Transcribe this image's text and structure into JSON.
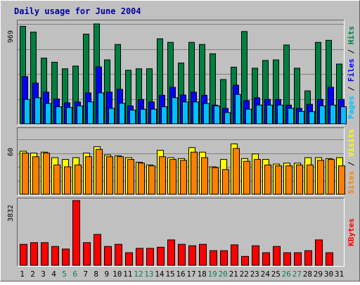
{
  "chart_data": {
    "type": "bar",
    "title": "Daily usage for June 2004",
    "x": [
      "1",
      "2",
      "3",
      "4",
      "5",
      "6",
      "7",
      "8",
      "9",
      "10",
      "11",
      "12",
      "13",
      "14",
      "15",
      "16",
      "17",
      "18",
      "19",
      "20",
      "21",
      "22",
      "23",
      "24",
      "25",
      "26",
      "27",
      "28",
      "29",
      "30",
      "31"
    ],
    "weekend_days": [
      "5",
      "6",
      "12",
      "13",
      "19",
      "20",
      "26",
      "27"
    ],
    "panels": [
      {
        "name": "hits-files-pages",
        "ylim": [
          0,
          969
        ],
        "max_label": "969",
        "grid": true,
        "series": [
          {
            "name": "Hits",
            "color": "#008040",
            "values": [
              946,
              890,
              638,
              598,
              534,
              560,
              870,
              969,
              620,
              770,
              520,
              534,
              534,
              825,
              790,
              590,
              790,
              770,
              680,
              430,
              550,
              895,
              540,
              615,
              620,
              765,
              540,
              320,
              790,
              810,
              580
            ]
          },
          {
            "name": "Files",
            "color": "#0000ff",
            "values": [
              458,
              395,
              308,
              240,
              205,
              213,
              300,
              553,
              308,
              335,
              174,
              237,
              213,
              277,
              355,
              280,
              308,
              277,
              182,
              150,
              375,
              225,
              253,
              237,
              237,
              182,
              150,
              190,
              237,
              355,
              237
            ]
          },
          {
            "name": "Pages",
            "color": "#00c0ff",
            "values": [
              237,
              253,
              197,
              166,
              158,
              174,
              213,
              300,
              150,
              200,
              134,
              142,
              142,
              166,
              253,
              213,
              213,
              197,
              174,
              110,
              285,
              142,
              182,
              182,
              182,
              150,
              120,
              118,
              174,
              182,
              166
            ]
          }
        ],
        "axis_label": "Pages / Files / Hits"
      },
      {
        "name": "visits-sites",
        "ylim": [
          0,
          60
        ],
        "max_label": "60",
        "grid": true,
        "series": [
          {
            "name": "Visits",
            "color": "#ffff00",
            "values": [
              47,
              45,
              46,
              40,
              38,
              40,
              45,
              52,
              43,
              42,
              40,
              35,
              32,
              48,
              40,
              39,
              51,
              46,
              30,
              38,
              55,
              39,
              44,
              38,
              33,
              34,
              34,
              40,
              40,
              39,
              40
            ]
          },
          {
            "name": "Sites",
            "color": "#ff8000",
            "values": [
              45,
              41,
              45,
              32,
              30,
              32,
              41,
              49,
              41,
              41,
              38,
              34,
              31,
              41,
              38,
              37,
              46,
              40,
              29,
              27,
              50,
              36,
              38,
              32,
              31,
              31,
              32,
              32,
              37,
              38,
              31
            ]
          }
        ],
        "axis_label": "Sites / Visits"
      },
      {
        "name": "kbytes",
        "ylim": [
          0,
          3832
        ],
        "max_label": "3832",
        "grid": false,
        "series": [
          {
            "name": "KBytes",
            "color": "#ff0000",
            "values": [
              1240,
              1340,
              1340,
              1118,
              961,
              3832,
              1340,
              1830,
              1118,
              1240,
              747,
              1004,
              1004,
              1070,
              1505,
              1240,
              1160,
              1240,
              865,
              865,
              1210,
              530,
              1160,
              747,
              1118,
              747,
              747,
              865,
              1505,
              747,
              0
            ]
          }
        ],
        "axis_label": "KBytes"
      }
    ]
  }
}
